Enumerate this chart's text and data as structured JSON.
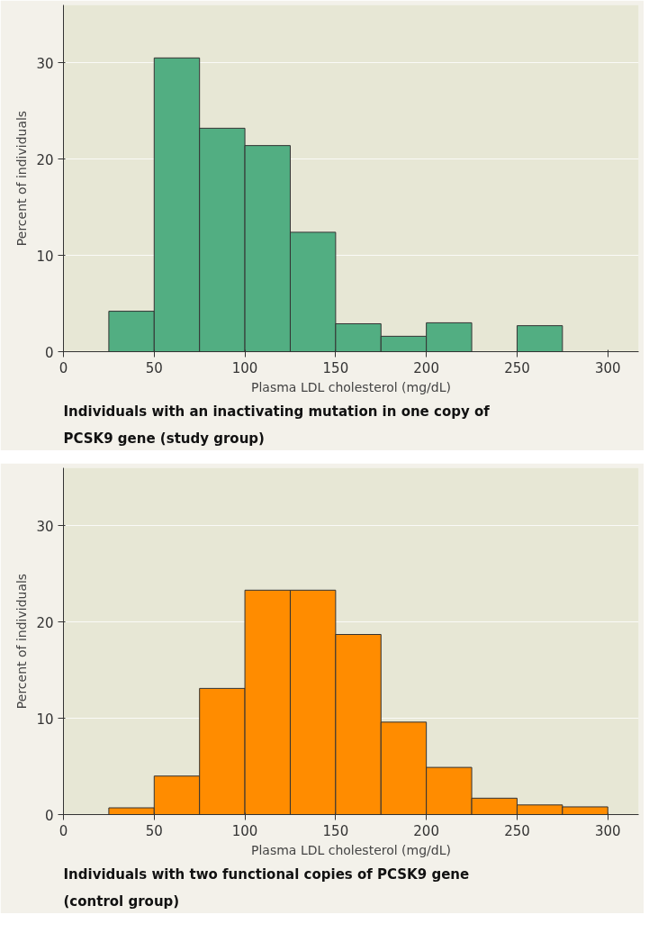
{
  "chart_data": [
    {
      "type": "histogram",
      "title": "Individuals with an inactivating mutation in one copy of PCSK9 gene (study group)",
      "xlabel": "Plasma LDL cholesterol (mg/dL)",
      "ylabel": "Percent of individuals",
      "bins": [
        25,
        50,
        75,
        100,
        125,
        150,
        175,
        200,
        225,
        250,
        275,
        300
      ],
      "values": [
        4.2,
        30.5,
        23.2,
        21.4,
        12.4,
        2.9,
        1.6,
        3.0,
        0,
        2.7,
        0
      ],
      "color": "#52ae82",
      "xlim": [
        0,
        317
      ],
      "xticks": [
        0,
        50,
        100,
        150,
        200,
        250,
        300
      ],
      "ylim": [
        0,
        36
      ],
      "yticks": [
        0,
        10,
        20,
        30
      ],
      "grid": "y"
    },
    {
      "type": "histogram",
      "title": "Individuals with two functional copies of PCSK9 gene (control group)",
      "xlabel": "Plasma LDL cholesterol (mg/dL)",
      "ylabel": "Percent of individuals",
      "bins": [
        25,
        50,
        75,
        100,
        125,
        150,
        175,
        200,
        225,
        250,
        275,
        300
      ],
      "values": [
        0.7,
        4.0,
        13.1,
        23.3,
        23.3,
        18.7,
        9.6,
        4.9,
        1.7,
        1.0,
        0.8
      ],
      "color": "#ff8c00",
      "xlim": [
        0,
        317
      ],
      "xticks": [
        0,
        50,
        100,
        150,
        200,
        250,
        300
      ],
      "ylim": [
        0,
        36
      ],
      "yticks": [
        0,
        10,
        20,
        30
      ],
      "grid": "y"
    }
  ]
}
